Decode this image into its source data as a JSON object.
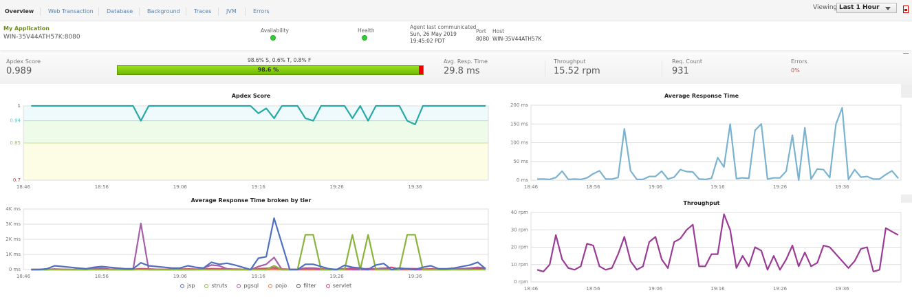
{
  "tabs": [
    {
      "label": "Overview",
      "active": true
    },
    {
      "label": "Web Transaction"
    },
    {
      "label": "Database"
    },
    {
      "label": "Background"
    },
    {
      "label": "Traces"
    },
    {
      "label": "JVM"
    },
    {
      "label": "Errors"
    }
  ],
  "viewing": {
    "label": "Viewing",
    "selected": "Last 1 Hour"
  },
  "icons": {
    "export": "pdf-icon",
    "add": "add-monitor-icon",
    "availability": "green-status-dot",
    "health": "green-status-dot"
  },
  "app": {
    "name": "My Application",
    "instance": "WIN-35V44ATH57K:8080"
  },
  "info": {
    "availability_label": "Availability",
    "health_label": "Health",
    "agent_label": "Agent last communicated",
    "agent_date": "Sun, 26 May 2019",
    "agent_time": "19:45:02 PDT",
    "port_label": "Port",
    "port": "8080",
    "host_label": "Host",
    "host": "WIN-35V44ATH57K"
  },
  "stats": {
    "apdex_label": "Apdex Score",
    "apdex": "0.989",
    "breakdown": "98.6% S, 0.6% T, 0.8% F",
    "bar_label": "98.6 %",
    "satisfied_pct": 98.6,
    "resp_label": "Avg. Resp. Time",
    "resp": "29.8 ms",
    "thr_label": "Throughput",
    "thr": "15.52 rpm",
    "req_label": "Req. Count",
    "req": "931",
    "err_label": "Errors",
    "err": "0%"
  },
  "colors": {
    "apdex": "#26a9a5",
    "resp": "#7ab3d0",
    "throughput": "#9b3b96",
    "bar_good": "#7cc60a",
    "bar_bad": "#e00000",
    "errors": "#c0504d"
  },
  "chart_data": [
    {
      "id": "apdex",
      "type": "line",
      "title": "Apdex Score",
      "ylim": [
        0.7,
        1
      ],
      "yticks": [
        "1",
        "0.94",
        "0.85",
        "0.7"
      ],
      "ytick_values": [
        1,
        0.94,
        0.85,
        0.7
      ],
      "xticks": [
        "18:46",
        "18:56",
        "19:06",
        "19:16",
        "19:26",
        "19:36"
      ],
      "xlim": [
        "18:46",
        "19:45"
      ],
      "grid": true,
      "series": [
        {
          "color": "#26a9a5",
          "values": [
            1,
            1,
            1,
            1,
            1,
            1,
            1,
            1,
            1,
            1,
            1,
            1,
            1,
            1,
            0.94,
            1,
            1,
            1,
            1,
            1,
            1,
            1,
            1,
            1,
            1,
            1,
            1,
            1,
            1,
            0.97,
            0.99,
            0.95,
            1,
            1,
            1,
            0.95,
            0.94,
            1,
            1,
            1,
            1,
            0.95,
            1,
            0.94,
            1,
            1,
            1,
            1,
            0.94,
            0.925,
            1,
            1,
            1,
            1,
            1,
            1,
            1,
            1,
            1
          ]
        }
      ]
    },
    {
      "id": "resp",
      "type": "line",
      "title": "Average Response Time",
      "ylim": [
        0,
        200
      ],
      "yticks": [
        "200 ms",
        "150 ms",
        "100 ms",
        "50 ms",
        "0 ms"
      ],
      "ytick_values": [
        200,
        150,
        100,
        50,
        0
      ],
      "xticks": [
        "18:46",
        "18:56",
        "19:06",
        "19:16",
        "19:26",
        "19:36"
      ],
      "xlim": [
        "18:46",
        "19:45"
      ],
      "grid": true,
      "series": [
        {
          "color": "#7ab3d0",
          "values": [
            3,
            3,
            2,
            7,
            24,
            2,
            3,
            2,
            6,
            17,
            25,
            3,
            3,
            7,
            137,
            25,
            2,
            2,
            10,
            10,
            24,
            3,
            8,
            28,
            23,
            22,
            3,
            2,
            5,
            60,
            35,
            150,
            4,
            6,
            5,
            133,
            150,
            3,
            6,
            6,
            24,
            120,
            0,
            140,
            3,
            30,
            28,
            7,
            150,
            193,
            2,
            28,
            8,
            10,
            3,
            3,
            15,
            25,
            5
          ]
        }
      ]
    },
    {
      "id": "tier",
      "type": "line",
      "title": "Average Response Time broken by tier",
      "ylim": [
        0,
        4000
      ],
      "yticks": [
        "4K ms",
        "3K ms",
        "2K ms",
        "1K ms",
        "0 ms"
      ],
      "ytick_values": [
        4000,
        3000,
        2000,
        1000,
        0
      ],
      "xticks": [
        "18:46",
        "18:56",
        "19:06",
        "19:16",
        "19:26",
        "19:36"
      ],
      "xlim": [
        "18:46",
        "19:45"
      ],
      "grid": true,
      "legend": "bottom",
      "series": [
        {
          "name": "jsp",
          "color": "#4f6fbf",
          "values": [
            0,
            0,
            50,
            250,
            200,
            150,
            100,
            50,
            150,
            200,
            150,
            100,
            50,
            50,
            450,
            250,
            200,
            150,
            100,
            100,
            250,
            150,
            100,
            480,
            350,
            420,
            300,
            150,
            0,
            750,
            850,
            3400,
            1700,
            0,
            0,
            350,
            350,
            200,
            50,
            0,
            280,
            150,
            100,
            0,
            300,
            400,
            0,
            100,
            50,
            0,
            150,
            250,
            50,
            50,
            100,
            200,
            300,
            480,
            50
          ]
        },
        {
          "name": "struts",
          "color": "#8ab33c",
          "values": [
            0,
            0,
            0,
            0,
            0,
            0,
            0,
            0,
            0,
            0,
            0,
            0,
            0,
            0,
            0,
            0,
            0,
            0,
            0,
            0,
            0,
            0,
            0,
            0,
            0,
            0,
            0,
            0,
            0,
            0,
            0,
            250,
            0,
            0,
            0,
            2300,
            2300,
            0,
            0,
            0,
            0,
            2300,
            0,
            2300,
            0,
            0,
            0,
            0,
            2300,
            2300,
            0,
            0,
            0,
            0,
            0,
            0,
            0,
            0,
            0
          ]
        },
        {
          "name": "pgsql",
          "color": "#a65fa8",
          "values": [
            0,
            0,
            0,
            30,
            0,
            0,
            0,
            0,
            50,
            50,
            0,
            0,
            0,
            0,
            3050,
            0,
            0,
            0,
            0,
            0,
            0,
            0,
            100,
            300,
            250,
            50,
            0,
            0,
            0,
            200,
            350,
            800,
            0,
            0,
            0,
            50,
            50,
            0,
            0,
            0,
            50,
            0,
            0,
            0,
            50,
            100,
            0,
            0,
            50,
            0,
            0,
            0,
            0,
            0,
            50,
            50,
            100,
            150,
            100
          ]
        },
        {
          "name": "pojo",
          "color": "#f08050",
          "values": [
            0,
            0,
            0,
            0,
            0,
            0,
            0,
            0,
            0,
            0,
            0,
            0,
            0,
            0,
            0,
            0,
            0,
            0,
            0,
            0,
            0,
            0,
            0,
            0,
            0,
            0,
            0,
            0,
            0,
            0,
            0,
            0,
            0,
            0,
            0,
            0,
            0,
            0,
            0,
            0,
            0,
            0,
            0,
            0,
            0,
            0,
            0,
            0,
            0,
            0,
            0,
            0,
            0,
            0,
            0,
            0,
            0,
            0,
            0
          ]
        },
        {
          "name": "filter",
          "color": "#555555",
          "values": [
            0,
            0,
            0,
            0,
            0,
            0,
            0,
            0,
            0,
            0,
            0,
            0,
            0,
            0,
            10,
            0,
            0,
            0,
            0,
            0,
            0,
            0,
            0,
            0,
            0,
            0,
            0,
            0,
            0,
            0,
            0,
            10,
            0,
            0,
            0,
            0,
            0,
            0,
            0,
            0,
            0,
            0,
            0,
            0,
            0,
            0,
            0,
            0,
            0,
            0,
            0,
            0,
            0,
            0,
            0,
            0,
            0,
            20,
            20
          ]
        },
        {
          "name": "servlet",
          "color": "#e0407a",
          "values": [
            0,
            0,
            20,
            30,
            20,
            10,
            10,
            20,
            60,
            80,
            30,
            20,
            10,
            20,
            60,
            40,
            20,
            20,
            30,
            30,
            40,
            30,
            30,
            60,
            50,
            40,
            30,
            20,
            10,
            60,
            80,
            120,
            40,
            20,
            20,
            100,
            100,
            50,
            20,
            20,
            50,
            80,
            30,
            60,
            30,
            80,
            150,
            30,
            60,
            60,
            30,
            40,
            30,
            30,
            30,
            50,
            80,
            100,
            60
          ]
        }
      ]
    },
    {
      "id": "thr",
      "type": "line",
      "title": "Throughput",
      "ylim": [
        0,
        40
      ],
      "yticks": [
        "40 rpm",
        "30 rpm",
        "20 rpm",
        "10 rpm",
        "0 rpm"
      ],
      "ytick_values": [
        40,
        30,
        20,
        10,
        0
      ],
      "xticks": [
        "18:46",
        "18:56",
        "19:06",
        "19:16",
        "19:26",
        "19:36"
      ],
      "xlim": [
        "18:46",
        "19:45"
      ],
      "grid": true,
      "series": [
        {
          "color": "#9b3b96",
          "values": [
            7,
            6,
            10,
            27,
            13,
            8,
            7,
            9,
            22,
            21,
            9,
            7,
            8,
            16,
            26,
            12,
            7,
            9,
            23,
            26,
            13,
            8,
            23,
            25,
            30,
            33,
            9,
            9,
            16,
            16,
            39,
            30,
            8,
            15,
            9,
            20,
            18,
            7,
            15,
            7,
            13,
            21,
            9,
            17,
            9,
            11,
            21,
            20,
            16,
            12,
            8,
            12,
            19,
            20,
            6,
            7,
            31,
            29,
            27
          ]
        }
      ]
    }
  ]
}
